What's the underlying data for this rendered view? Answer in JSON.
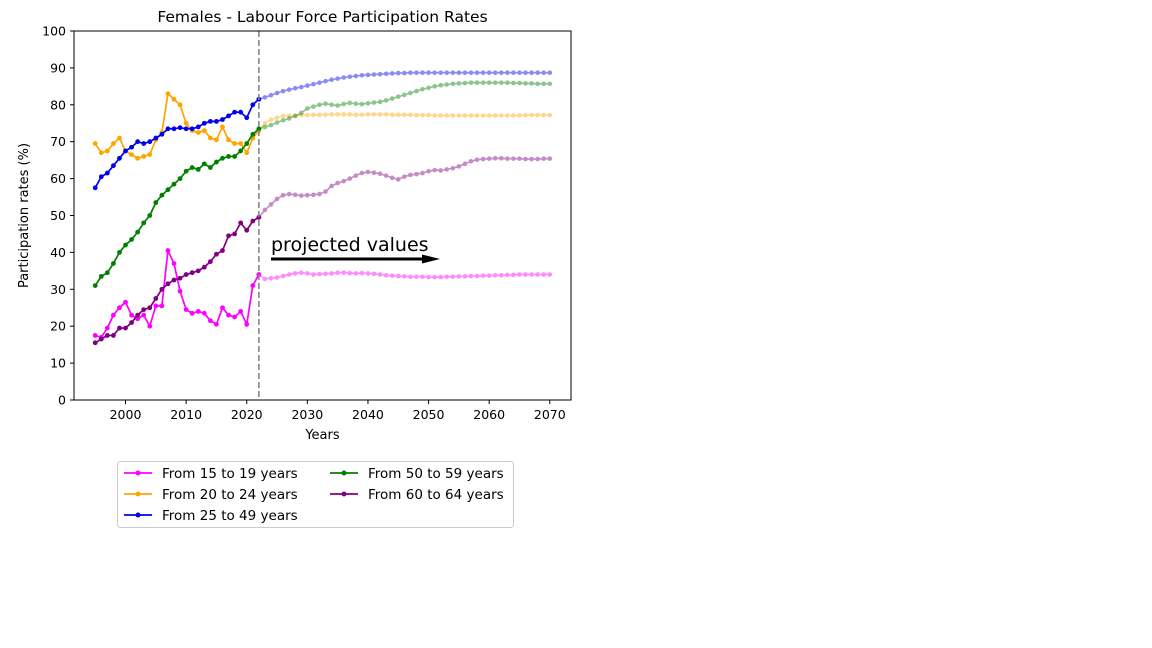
{
  "chart_data": {
    "type": "line",
    "title": "Females - Labour Force Participation Rates",
    "xlabel": "Years",
    "ylabel": "Participation rates (%)",
    "xlim": [
      1991.5,
      2073.5
    ],
    "ylim": [
      0,
      100
    ],
    "xticks": [
      2000,
      2010,
      2020,
      2030,
      2040,
      2050,
      2060,
      2070
    ],
    "yticks": [
      0,
      10,
      20,
      30,
      40,
      50,
      60,
      70,
      80,
      90,
      100
    ],
    "projection_start_year": 2022,
    "annotation": "projected values",
    "legend_position": "below",
    "grid": false,
    "series": [
      {
        "name": "From 15 to 19 years",
        "color": "#ff00ff",
        "x": [
          1995,
          1996,
          1997,
          1998,
          1999,
          2000,
          2001,
          2002,
          2003,
          2004,
          2005,
          2006,
          2007,
          2008,
          2009,
          2010,
          2011,
          2012,
          2013,
          2014,
          2015,
          2016,
          2017,
          2018,
          2019,
          2020,
          2021,
          2022
        ],
        "values": [
          17.5,
          17.0,
          19.5,
          23.0,
          25.0,
          26.5,
          23.0,
          22.0,
          23.0,
          20.0,
          25.5,
          25.5,
          40.5,
          37.0,
          29.5,
          24.5,
          23.5,
          24.0,
          23.5,
          21.5,
          20.5,
          25.0,
          23.0,
          22.5,
          24.0,
          20.5,
          31.0,
          34.0
        ],
        "projected_x": [
          2022,
          2023,
          2024,
          2025,
          2026,
          2027,
          2028,
          2029,
          2030,
          2031,
          2032,
          2033,
          2034,
          2035,
          2036,
          2037,
          2038,
          2039,
          2040,
          2041,
          2042,
          2043,
          2044,
          2045,
          2046,
          2047,
          2048,
          2049,
          2050,
          2051,
          2052,
          2053,
          2054,
          2055,
          2056,
          2057,
          2058,
          2059,
          2060,
          2061,
          2062,
          2063,
          2064,
          2065,
          2066,
          2067,
          2068,
          2069,
          2070
        ],
        "projected_values": [
          34.0,
          32.8,
          33.0,
          33.2,
          33.6,
          34.0,
          34.3,
          34.5,
          34.3,
          34.0,
          34.1,
          34.2,
          34.3,
          34.5,
          34.5,
          34.4,
          34.3,
          34.4,
          34.3,
          34.2,
          34.0,
          33.8,
          33.7,
          33.6,
          33.5,
          33.4,
          33.4,
          33.4,
          33.3,
          33.3,
          33.3,
          33.4,
          33.4,
          33.5,
          33.5,
          33.6,
          33.6,
          33.7,
          33.7,
          33.8,
          33.8,
          33.9,
          33.9,
          34.0,
          34.0,
          34.0,
          34.0,
          34.0,
          34.0
        ]
      },
      {
        "name": "From 20 to 24 years",
        "color": "#ffa500",
        "x": [
          1995,
          1996,
          1997,
          1998,
          1999,
          2000,
          2001,
          2002,
          2003,
          2004,
          2005,
          2006,
          2007,
          2008,
          2009,
          2010,
          2011,
          2012,
          2013,
          2014,
          2015,
          2016,
          2017,
          2018,
          2019,
          2020,
          2021,
          2022
        ],
        "values": [
          69.5,
          67.0,
          67.5,
          69.5,
          71.0,
          67.5,
          66.5,
          65.5,
          66.0,
          66.5,
          70.5,
          72.5,
          83.0,
          81.5,
          80.0,
          75.0,
          73.0,
          72.5,
          73.0,
          71.0,
          70.5,
          74.0,
          70.5,
          69.5,
          69.5,
          67.0,
          71.0,
          73.0
        ],
        "projected_x": [
          2022,
          2023,
          2024,
          2025,
          2026,
          2027,
          2028,
          2029,
          2030,
          2031,
          2032,
          2033,
          2034,
          2035,
          2036,
          2037,
          2038,
          2039,
          2040,
          2041,
          2042,
          2043,
          2044,
          2045,
          2046,
          2047,
          2048,
          2049,
          2050,
          2051,
          2052,
          2053,
          2054,
          2055,
          2056,
          2057,
          2058,
          2059,
          2060,
          2061,
          2062,
          2063,
          2064,
          2065,
          2066,
          2067,
          2068,
          2069,
          2070
        ],
        "projected_values": [
          73.0,
          75.0,
          76.0,
          76.5,
          77.0,
          77.0,
          77.0,
          77.2,
          77.2,
          77.3,
          77.3,
          77.3,
          77.4,
          77.4,
          77.4,
          77.4,
          77.3,
          77.3,
          77.4,
          77.4,
          77.4,
          77.4,
          77.3,
          77.3,
          77.3,
          77.3,
          77.2,
          77.2,
          77.2,
          77.1,
          77.1,
          77.1,
          77.1,
          77.1,
          77.1,
          77.1,
          77.1,
          77.1,
          77.1,
          77.1,
          77.1,
          77.1,
          77.1,
          77.1,
          77.2,
          77.2,
          77.2,
          77.2,
          77.2
        ]
      },
      {
        "name": "From 25 to 49 years",
        "color": "#0000ee",
        "x": [
          1995,
          1996,
          1997,
          1998,
          1999,
          2000,
          2001,
          2002,
          2003,
          2004,
          2005,
          2006,
          2007,
          2008,
          2009,
          2010,
          2011,
          2012,
          2013,
          2014,
          2015,
          2016,
          2017,
          2018,
          2019,
          2020,
          2021,
          2022
        ],
        "values": [
          57.5,
          60.5,
          61.5,
          63.5,
          65.5,
          67.5,
          68.5,
          70.0,
          69.5,
          70.0,
          71.0,
          72.0,
          73.5,
          73.5,
          73.8,
          73.5,
          73.5,
          74.0,
          75.0,
          75.5,
          75.5,
          76.0,
          77.0,
          78.0,
          78.0,
          76.5,
          80.0,
          81.5
        ],
        "projected_x": [
          2022,
          2023,
          2024,
          2025,
          2026,
          2027,
          2028,
          2029,
          2030,
          2031,
          2032,
          2033,
          2034,
          2035,
          2036,
          2037,
          2038,
          2039,
          2040,
          2041,
          2042,
          2043,
          2044,
          2045,
          2046,
          2047,
          2048,
          2049,
          2050,
          2051,
          2052,
          2053,
          2054,
          2055,
          2056,
          2057,
          2058,
          2059,
          2060,
          2061,
          2062,
          2063,
          2064,
          2065,
          2066,
          2067,
          2068,
          2069,
          2070
        ],
        "projected_values": [
          81.5,
          82.0,
          82.6,
          83.2,
          83.7,
          84.1,
          84.5,
          84.8,
          85.2,
          85.6,
          86.0,
          86.4,
          86.8,
          87.1,
          87.4,
          87.6,
          87.8,
          88.0,
          88.1,
          88.2,
          88.3,
          88.4,
          88.5,
          88.6,
          88.6,
          88.7,
          88.7,
          88.7,
          88.7,
          88.7,
          88.7,
          88.7,
          88.7,
          88.7,
          88.7,
          88.7,
          88.7,
          88.7,
          88.7,
          88.7,
          88.7,
          88.7,
          88.7,
          88.7,
          88.7,
          88.7,
          88.7,
          88.7,
          88.7
        ]
      },
      {
        "name": "From 50 to 59 years",
        "color": "#008000",
        "x": [
          1995,
          1996,
          1997,
          1998,
          1999,
          2000,
          2001,
          2002,
          2003,
          2004,
          2005,
          2006,
          2007,
          2008,
          2009,
          2010,
          2011,
          2012,
          2013,
          2014,
          2015,
          2016,
          2017,
          2018,
          2019,
          2020,
          2021,
          2022
        ],
        "values": [
          31.0,
          33.5,
          34.5,
          37.0,
          40.0,
          42.0,
          43.5,
          45.5,
          48.0,
          50.0,
          53.5,
          55.5,
          57.0,
          58.5,
          60.0,
          62.0,
          63.0,
          62.5,
          64.0,
          63.0,
          64.5,
          65.5,
          66.0,
          66.0,
          67.5,
          69.5,
          72.0,
          73.5
        ],
        "projected_x": [
          2022,
          2023,
          2024,
          2025,
          2026,
          2027,
          2028,
          2029,
          2030,
          2031,
          2032,
          2033,
          2034,
          2035,
          2036,
          2037,
          2038,
          2039,
          2040,
          2041,
          2042,
          2043,
          2044,
          2045,
          2046,
          2047,
          2048,
          2049,
          2050,
          2051,
          2052,
          2053,
          2054,
          2055,
          2056,
          2057,
          2058,
          2059,
          2060,
          2061,
          2062,
          2063,
          2064,
          2065,
          2066,
          2067,
          2068,
          2069,
          2070
        ],
        "projected_values": [
          73.5,
          74.0,
          74.5,
          75.2,
          75.8,
          76.3,
          77.0,
          77.8,
          79.0,
          79.5,
          80.0,
          80.3,
          80.0,
          79.8,
          80.2,
          80.5,
          80.3,
          80.2,
          80.4,
          80.6,
          80.8,
          81.2,
          81.7,
          82.2,
          82.7,
          83.2,
          83.7,
          84.2,
          84.6,
          85.0,
          85.3,
          85.5,
          85.7,
          85.8,
          85.9,
          86.0,
          86.0,
          86.0,
          86.0,
          86.0,
          86.0,
          86.0,
          85.9,
          85.9,
          85.8,
          85.8,
          85.7,
          85.7,
          85.7
        ]
      },
      {
        "name": "From 60 to 64 years",
        "color": "#800080",
        "x": [
          1995,
          1996,
          1997,
          1998,
          1999,
          2000,
          2001,
          2002,
          2003,
          2004,
          2005,
          2006,
          2007,
          2008,
          2009,
          2010,
          2011,
          2012,
          2013,
          2014,
          2015,
          2016,
          2017,
          2018,
          2019,
          2020,
          2021,
          2022
        ],
        "values": [
          15.5,
          16.5,
          17.5,
          17.5,
          19.5,
          19.5,
          21.0,
          23.0,
          24.5,
          25.0,
          27.5,
          30.0,
          31.5,
          32.5,
          33.0,
          34.0,
          34.5,
          35.0,
          36.0,
          37.5,
          39.5,
          40.5,
          44.5,
          45.0,
          48.0,
          46.0,
          48.5,
          49.5
        ],
        "projected_x": [
          2022,
          2023,
          2024,
          2025,
          2026,
          2027,
          2028,
          2029,
          2030,
          2031,
          2032,
          2033,
          2034,
          2035,
          2036,
          2037,
          2038,
          2039,
          2040,
          2041,
          2042,
          2043,
          2044,
          2045,
          2046,
          2047,
          2048,
          2049,
          2050,
          2051,
          2052,
          2053,
          2054,
          2055,
          2056,
          2057,
          2058,
          2059,
          2060,
          2061,
          2062,
          2063,
          2064,
          2065,
          2066,
          2067,
          2068,
          2069,
          2070
        ],
        "projected_values": [
          49.5,
          51.5,
          53.0,
          54.5,
          55.5,
          55.8,
          55.6,
          55.4,
          55.5,
          55.6,
          55.8,
          56.5,
          58.0,
          58.8,
          59.3,
          60.0,
          60.8,
          61.5,
          61.8,
          61.6,
          61.3,
          60.8,
          60.2,
          59.8,
          60.5,
          61.0,
          61.2,
          61.5,
          62.0,
          62.3,
          62.2,
          62.5,
          62.8,
          63.3,
          64.0,
          64.7,
          65.1,
          65.3,
          65.4,
          65.5,
          65.5,
          65.4,
          65.4,
          65.4,
          65.3,
          65.3,
          65.3,
          65.4,
          65.4
        ]
      }
    ]
  }
}
